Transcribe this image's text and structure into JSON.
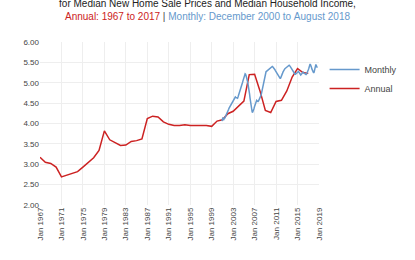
{
  "chart_data": {
    "type": "line",
    "title": "for Median New Home Sale Prices and Median Household Income,",
    "subtitle": [
      "Annual: 1967 to 2017",
      " | ",
      "Monthly: December 2000 to August 2018"
    ],
    "series": [
      {
        "name": "Annual",
        "color": "#cc2222",
        "x": [
          1967,
          1968,
          1969,
          1970,
          1971,
          1972,
          1973,
          1974,
          1975,
          1976,
          1977,
          1978,
          1979,
          1980,
          1981,
          1982,
          1983,
          1984,
          1985,
          1986,
          1987,
          1988,
          1989,
          1990,
          1991,
          1992,
          1993,
          1994,
          1995,
          1996,
          1997,
          1998,
          1999,
          2000,
          2001,
          2002,
          2003,
          2004,
          2005,
          2006,
          2007,
          2008,
          2009,
          2010,
          2011,
          2012,
          2013,
          2014,
          2015,
          2016,
          2017
        ],
        "values": [
          3.17,
          3.05,
          3.02,
          2.93,
          2.69,
          2.73,
          2.78,
          2.82,
          2.93,
          3.04,
          3.16,
          3.34,
          3.82,
          3.6,
          3.52,
          3.46,
          3.47,
          3.56,
          3.58,
          3.62,
          4.12,
          4.18,
          4.16,
          4.04,
          3.98,
          3.95,
          3.95,
          3.97,
          3.95,
          3.95,
          3.95,
          3.95,
          3.93,
          4.06,
          4.09,
          4.24,
          4.3,
          4.42,
          4.55,
          5.2,
          5.21,
          4.8,
          4.32,
          4.27,
          4.54,
          4.57,
          4.8,
          5.14,
          5.35,
          5.25,
          5.23
        ]
      },
      {
        "name": "Monthly",
        "color": "#6699cc",
        "x": [
          2000.917,
          2001.0,
          2001.083,
          2001.166,
          2001.249,
          2001.332,
          2001.415,
          2001.498,
          2001.581,
          2001.663,
          2001.746,
          2001.829,
          2001.912,
          2001.995,
          2002.078,
          2002.161,
          2002.244,
          2002.327,
          2002.41,
          2002.493,
          2002.576,
          2002.659,
          2002.742,
          2002.825,
          2002.908,
          2002.991,
          2003.074,
          2003.156,
          2003.239,
          2003.322,
          2003.405,
          2003.488,
          2003.571,
          2003.654,
          2003.737,
          2003.82,
          2003.903,
          2003.986,
          2004.069,
          2004.152,
          2004.235,
          2004.318,
          2004.401,
          2004.484,
          2004.567,
          2004.649,
          2004.732,
          2004.815,
          2004.898,
          2004.981,
          2005.064,
          2005.147,
          2005.23,
          2005.313,
          2005.396,
          2005.479,
          2005.562,
          2005.645,
          2005.728,
          2005.811,
          2005.894,
          2005.977,
          2006.06,
          2006.142,
          2006.225,
          2006.308,
          2006.391,
          2006.474,
          2006.557,
          2006.64,
          2006.723,
          2006.806,
          2006.889,
          2006.972,
          2007.055,
          2007.138,
          2007.221,
          2007.304,
          2007.387,
          2007.47,
          2007.553,
          2007.635,
          2007.718,
          2007.801,
          2007.884,
          2007.967,
          2008.05,
          2008.133,
          2008.216,
          2008.299,
          2008.382,
          2008.465,
          2008.548,
          2008.631,
          2008.714,
          2008.797,
          2008.88,
          2008.963,
          2009.046,
          2009.128,
          2009.211,
          2009.294,
          2009.377,
          2009.46,
          2009.543,
          2009.626,
          2009.709,
          2009.792,
          2009.875,
          2009.958,
          2010.041,
          2010.124,
          2010.207,
          2010.29,
          2010.373,
          2010.456,
          2010.538,
          2010.621,
          2010.704,
          2010.787,
          2010.87,
          2010.953,
          2011.036,
          2011.119,
          2011.202,
          2011.285,
          2011.368,
          2011.451,
          2011.534,
          2011.617,
          2011.7,
          2011.783,
          2011.866,
          2011.949,
          2012.031,
          2012.114,
          2012.197,
          2012.28,
          2012.363,
          2012.446,
          2012.529,
          2012.612,
          2012.695,
          2012.778,
          2012.861,
          2012.944,
          2013.027,
          2013.11,
          2013.193,
          2013.276,
          2013.359,
          2013.442,
          2013.524,
          2013.607,
          2013.69,
          2013.773,
          2013.856,
          2013.939,
          2014.022,
          2014.105,
          2014.188,
          2014.271,
          2014.354,
          2014.437,
          2014.52,
          2014.603,
          2014.686,
          2014.769,
          2014.852,
          2014.935,
          2015.017,
          2015.1,
          2015.183,
          2015.266,
          2015.349,
          2015.432,
          2015.515,
          2015.598,
          2015.681,
          2015.764,
          2015.847,
          2015.93,
          2016.013,
          2016.096,
          2016.179,
          2016.262,
          2016.345,
          2016.428,
          2016.51,
          2016.593,
          2016.676,
          2016.759,
          2016.842,
          2016.925,
          2017.008,
          2017.091,
          2017.174,
          2017.257,
          2017.34,
          2017.423,
          2017.506,
          2017.589,
          2017.672,
          2017.755,
          2017.838,
          2017.921,
          2018.003,
          2018.086,
          2018.169,
          2018.252,
          2018.335,
          2018.418,
          2018.501,
          2018.584,
          2018.667
        ],
        "values": [
          4.06,
          4.09,
          4.15,
          4.12,
          4.08,
          4.14,
          4.12,
          4.15,
          4.17,
          4.2,
          4.22,
          4.25,
          4.28,
          4.3,
          4.32,
          4.35,
          4.38,
          4.4,
          4.42,
          4.44,
          4.46,
          4.48,
          4.5,
          4.52,
          4.54,
          4.56,
          4.59,
          4.62,
          4.64,
          4.65,
          4.65,
          4.64,
          4.63,
          4.62,
          4.62,
          4.62,
          4.65,
          4.68,
          4.72,
          4.76,
          4.8,
          4.84,
          4.88,
          4.91,
          4.94,
          4.97,
          5.0,
          5.04,
          5.08,
          5.12,
          5.16,
          5.2,
          5.22,
          5.21,
          5.18,
          5.15,
          5.1,
          5.05,
          5.0,
          4.95,
          4.88,
          4.8,
          4.72,
          4.63,
          4.54,
          4.45,
          4.36,
          4.29,
          4.27,
          4.28,
          4.3,
          4.33,
          4.37,
          4.41,
          4.45,
          4.5,
          4.54,
          4.57,
          4.57,
          4.56,
          4.54,
          4.54,
          4.55,
          4.57,
          4.6,
          4.63,
          4.65,
          4.67,
          4.7,
          4.75,
          4.8,
          4.87,
          4.94,
          5.01,
          5.08,
          5.14,
          5.18,
          5.22,
          5.25,
          5.27,
          5.28,
          5.29,
          5.3,
          5.31,
          5.32,
          5.33,
          5.34,
          5.36,
          5.37,
          5.38,
          5.39,
          5.4,
          5.4,
          5.4,
          5.39,
          5.38,
          5.37,
          5.35,
          5.34,
          5.32,
          5.3,
          5.28,
          5.26,
          5.24,
          5.22,
          5.2,
          5.18,
          5.15,
          5.13,
          5.11,
          5.1,
          5.1,
          5.12,
          5.14,
          5.17,
          5.2,
          5.23,
          5.26,
          5.29,
          5.31,
          5.33,
          5.34,
          5.35,
          5.36,
          5.37,
          5.38,
          5.39,
          5.4,
          5.41,
          5.42,
          5.43,
          5.43,
          5.42,
          5.41,
          5.39,
          5.37,
          5.35,
          5.33,
          5.31,
          5.29,
          5.27,
          5.25,
          5.23,
          5.22,
          5.21,
          5.21,
          5.22,
          5.23,
          5.24,
          5.26,
          5.28,
          5.29,
          5.28,
          5.26,
          5.24,
          5.22,
          5.2,
          5.19,
          5.2,
          5.22,
          5.24,
          5.26,
          5.26,
          5.25,
          5.24,
          5.23,
          5.22,
          5.21,
          5.2,
          5.2,
          5.21,
          5.23,
          5.26,
          5.29,
          5.32,
          5.35,
          5.4,
          5.43,
          5.46,
          5.44,
          5.42,
          5.38,
          5.34,
          5.3,
          5.26,
          5.24,
          5.24,
          5.26,
          5.3,
          5.35,
          5.4,
          5.45,
          5.42,
          5.4,
          5.37
        ]
      }
    ],
    "xlim": [
      1967,
      2019
    ],
    "xticks": [
      {
        "value": 1967,
        "label": "Jan 1967"
      },
      {
        "value": 1971,
        "label": "Jan 1971"
      },
      {
        "value": 1975,
        "label": "Jan 1975"
      },
      {
        "value": 1979,
        "label": "Jan 1979"
      },
      {
        "value": 1983,
        "label": "Jan 1983"
      },
      {
        "value": 1987,
        "label": "Jan 1987"
      },
      {
        "value": 1991,
        "label": "Jan 1991"
      },
      {
        "value": 1995,
        "label": "Jan 1995"
      },
      {
        "value": 1999,
        "label": "Jan 1999"
      },
      {
        "value": 2003,
        "label": "Jan 2003"
      },
      {
        "value": 2007,
        "label": "Jan 2007"
      },
      {
        "value": 2011,
        "label": "Jan 2011"
      },
      {
        "value": 2015,
        "label": "Jan 2015"
      },
      {
        "value": 2019,
        "label": "Jan 2019"
      }
    ],
    "ylim": [
      2.0,
      6.0
    ],
    "yticks": [
      {
        "value": 2.0,
        "label": "2.00"
      },
      {
        "value": 2.5,
        "label": "2.50"
      },
      {
        "value": 3.0,
        "label": "3.00"
      },
      {
        "value": 3.5,
        "label": "3.50"
      },
      {
        "value": 4.0,
        "label": "4.00"
      },
      {
        "value": 4.5,
        "label": "4.50"
      },
      {
        "value": 5.0,
        "label": "5.00"
      },
      {
        "value": 5.5,
        "label": "5.50"
      },
      {
        "value": 6.0,
        "label": "6.00"
      }
    ],
    "grid": true,
    "legend": "right"
  }
}
